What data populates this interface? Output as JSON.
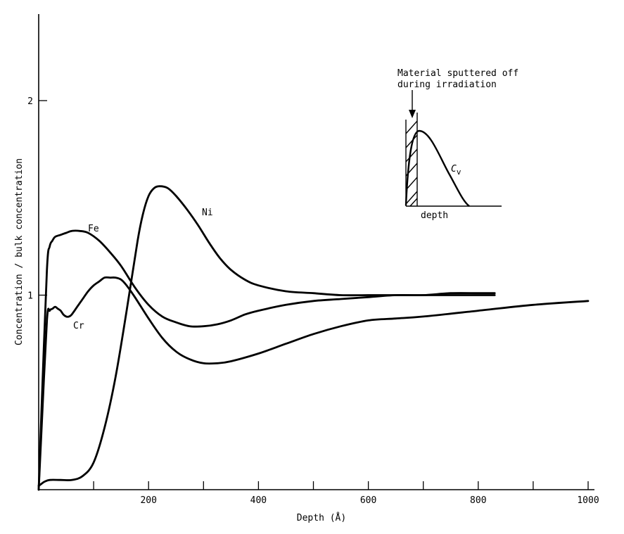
{
  "chart_data": {
    "type": "line",
    "xlabel": "Depth (Å)",
    "ylabel": "Concentration / bulk concentration",
    "xlim": [
      0,
      1000
    ],
    "ylim": [
      0,
      2.5
    ],
    "x_ticks": [
      100,
      200,
      300,
      400,
      500,
      600,
      700,
      800,
      900,
      1000
    ],
    "x_tick_labels": [
      "200",
      "400",
      "600",
      "800",
      "1000"
    ],
    "x_tick_label_values": [
      200,
      400,
      600,
      800,
      1000
    ],
    "y_ticks": [
      1,
      2
    ],
    "y_tick_labels": [
      "1",
      "2"
    ],
    "grid": false,
    "series": [
      {
        "name": "Ni",
        "x": [
          0,
          5,
          10,
          20,
          40,
          60,
          80,
          100,
          120,
          140,
          160,
          180,
          190,
          200,
          210,
          220,
          235,
          250,
          270,
          290,
          310,
          330,
          350,
          375,
          400,
          450,
          500,
          550,
          600,
          650,
          700,
          750,
          800,
          830
        ],
        "y": [
          0.02,
          0.03,
          0.04,
          0.05,
          0.05,
          0.05,
          0.07,
          0.14,
          0.32,
          0.58,
          0.92,
          1.28,
          1.42,
          1.51,
          1.55,
          1.56,
          1.55,
          1.51,
          1.44,
          1.36,
          1.27,
          1.19,
          1.13,
          1.08,
          1.05,
          1.02,
          1.01,
          1.0,
          1.0,
          1.0,
          1.0,
          1.0,
          1.0,
          1.0
        ]
      },
      {
        "name": "Fe",
        "x": [
          0,
          5,
          15,
          20,
          25,
          30,
          40,
          50,
          60,
          75,
          90,
          110,
          130,
          150,
          175,
          200,
          225,
          250,
          275,
          300,
          325,
          350,
          375,
          400,
          450,
          500,
          550,
          600,
          650,
          700,
          750,
          800,
          830
        ],
        "y": [
          0.0,
          0.4,
          1.13,
          1.25,
          1.28,
          1.3,
          1.31,
          1.32,
          1.33,
          1.33,
          1.32,
          1.28,
          1.22,
          1.15,
          1.04,
          0.95,
          0.89,
          0.86,
          0.84,
          0.84,
          0.85,
          0.87,
          0.9,
          0.92,
          0.95,
          0.97,
          0.98,
          0.99,
          1.0,
          1.0,
          1.01,
          1.01,
          1.01
        ]
      },
      {
        "name": "Cr",
        "x": [
          0,
          5,
          15,
          20,
          25,
          30,
          35,
          40,
          45,
          50,
          55,
          60,
          70,
          80,
          90,
          100,
          110,
          120,
          130,
          140,
          150,
          160,
          175,
          200,
          225,
          250,
          275,
          300,
          325,
          350,
          400,
          450,
          500,
          550,
          600,
          650,
          700,
          800,
          900,
          1000
        ],
        "y": [
          0.0,
          0.3,
          0.87,
          0.92,
          0.93,
          0.94,
          0.93,
          0.92,
          0.9,
          0.89,
          0.89,
          0.9,
          0.94,
          0.98,
          1.02,
          1.05,
          1.07,
          1.09,
          1.09,
          1.09,
          1.08,
          1.05,
          0.99,
          0.88,
          0.78,
          0.71,
          0.67,
          0.65,
          0.65,
          0.66,
          0.7,
          0.75,
          0.8,
          0.84,
          0.87,
          0.88,
          0.89,
          0.92,
          0.95,
          0.97
        ]
      }
    ],
    "inset": {
      "annotation_line1": "Material sputtered off",
      "annotation_line2": "during irradiation",
      "curve_label": "C",
      "curve_label_sub": "v",
      "xlabel": "depth"
    }
  }
}
